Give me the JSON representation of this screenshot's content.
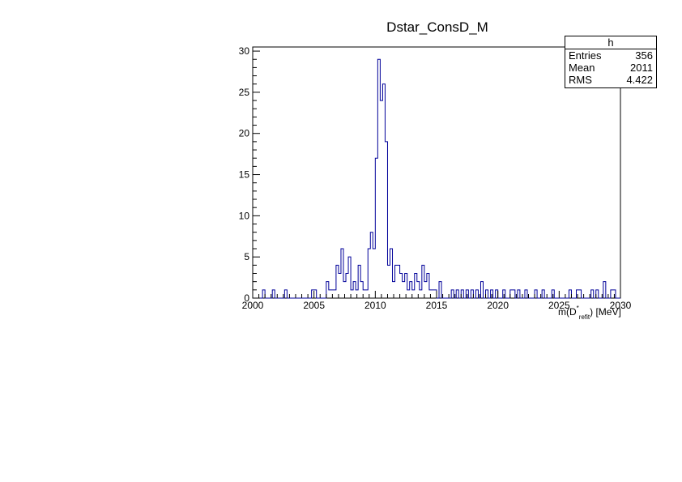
{
  "chart_data": {
    "type": "bar",
    "title": "Dstar_ConsD_M",
    "xlabel": {
      "main": "m(D",
      "superscript": "*",
      "subscript": "refit",
      "suffix": ") [MeV]"
    },
    "ylabel": "",
    "xlim": [
      2000,
      2030
    ],
    "ylim": [
      0,
      30.5
    ],
    "x_ticks": [
      2000,
      2005,
      2010,
      2015,
      2020,
      2025,
      2030
    ],
    "y_ticks": [
      0,
      5,
      10,
      15,
      20,
      25,
      30
    ],
    "bin_width": 0.2,
    "line_color": "#000099",
    "grid": false,
    "legend": "none",
    "bins": [
      [
        2000.8,
        1
      ],
      [
        2001.6,
        1
      ],
      [
        2002.6,
        1
      ],
      [
        2004.8,
        1
      ],
      [
        2005.0,
        1
      ],
      [
        2006.0,
        2
      ],
      [
        2006.2,
        1
      ],
      [
        2006.4,
        1
      ],
      [
        2006.6,
        1
      ],
      [
        2006.8,
        4
      ],
      [
        2007.0,
        3
      ],
      [
        2007.2,
        6
      ],
      [
        2007.4,
        2
      ],
      [
        2007.6,
        3
      ],
      [
        2007.8,
        5
      ],
      [
        2008.0,
        1
      ],
      [
        2008.2,
        2
      ],
      [
        2008.4,
        1
      ],
      [
        2008.6,
        4
      ],
      [
        2008.8,
        2
      ],
      [
        2009.0,
        1
      ],
      [
        2009.2,
        1
      ],
      [
        2009.4,
        6
      ],
      [
        2009.6,
        8
      ],
      [
        2009.8,
        6
      ],
      [
        2010.0,
        17
      ],
      [
        2010.2,
        29
      ],
      [
        2010.4,
        24
      ],
      [
        2010.6,
        26
      ],
      [
        2010.8,
        19
      ],
      [
        2011.0,
        4
      ],
      [
        2011.2,
        6
      ],
      [
        2011.4,
        2
      ],
      [
        2011.6,
        4
      ],
      [
        2011.8,
        4
      ],
      [
        2012.0,
        3
      ],
      [
        2012.2,
        2
      ],
      [
        2012.4,
        3
      ],
      [
        2012.6,
        1
      ],
      [
        2012.8,
        2
      ],
      [
        2013.0,
        1
      ],
      [
        2013.2,
        3
      ],
      [
        2013.4,
        2
      ],
      [
        2013.6,
        1
      ],
      [
        2013.8,
        4
      ],
      [
        2014.0,
        2
      ],
      [
        2014.2,
        3
      ],
      [
        2014.4,
        1
      ],
      [
        2014.6,
        1
      ],
      [
        2014.8,
        1
      ],
      [
        2015.2,
        2
      ],
      [
        2016.2,
        1
      ],
      [
        2016.6,
        1
      ],
      [
        2017.0,
        1
      ],
      [
        2017.4,
        1
      ],
      [
        2017.8,
        1
      ],
      [
        2018.2,
        1
      ],
      [
        2018.6,
        2
      ],
      [
        2019.0,
        1
      ],
      [
        2019.4,
        1
      ],
      [
        2019.8,
        1
      ],
      [
        2020.4,
        1
      ],
      [
        2021.0,
        1
      ],
      [
        2021.2,
        1
      ],
      [
        2021.6,
        1
      ],
      [
        2022.2,
        1
      ],
      [
        2023.0,
        1
      ],
      [
        2023.6,
        1
      ],
      [
        2024.4,
        1
      ],
      [
        2025.8,
        1
      ],
      [
        2026.4,
        1
      ],
      [
        2026.6,
        1
      ],
      [
        2027.6,
        1
      ],
      [
        2028.0,
        1
      ],
      [
        2028.6,
        2
      ],
      [
        2029.2,
        1
      ],
      [
        2029.4,
        1
      ]
    ],
    "stats": {
      "header": "h",
      "rows": [
        {
          "label": "Entries",
          "value": "356"
        },
        {
          "label": "Mean",
          "value": "2011"
        },
        {
          "label": "RMS",
          "value": "4.422"
        }
      ]
    }
  }
}
